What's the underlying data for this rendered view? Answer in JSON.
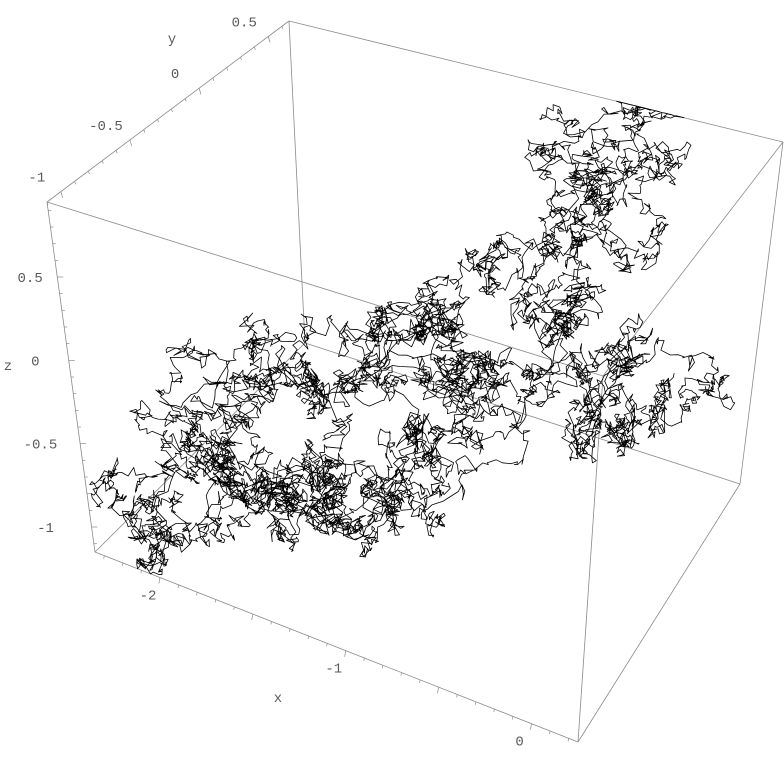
{
  "chart_data": {
    "type": "line3d",
    "title": "",
    "axes": {
      "x": {
        "label": "x",
        "range": [
          -2.35,
          0.25
        ],
        "tick_labels": [
          "-2",
          "-1",
          "0"
        ],
        "ticks": [
          -2,
          -1,
          0
        ]
      },
      "y": {
        "label": "y",
        "range": [
          -1.1,
          0.65
        ],
        "tick_labels": [
          "-1",
          "-0.5",
          "0",
          "0.5"
        ],
        "ticks": [
          -1,
          -0.5,
          0,
          0.5
        ]
      },
      "z": {
        "label": "z",
        "range": [
          -1.15,
          0.95
        ],
        "tick_labels": [
          "0.5",
          "0",
          "-0.5",
          "-1"
        ],
        "ticks": [
          0.5,
          0,
          -0.5,
          -1
        ]
      }
    },
    "box": true,
    "grid": false,
    "line_color": "#000000",
    "box_color": "#8a8a8a",
    "series": [
      {
        "description_of_path": "random walk (Brownian path), approximate waypoints in data units",
        "points": [
          [
            -2.1,
            -1.01,
            -1.07
          ],
          [
            -2.14,
            -1.01,
            -0.75
          ],
          [
            -1.93,
            -0.93,
            -0.43
          ],
          [
            -1.79,
            -0.93,
            0.11
          ],
          [
            -1.74,
            -0.84,
            -0.21
          ],
          [
            -1.5,
            -0.84,
            -0.01
          ],
          [
            -1.74,
            -0.84,
            -0.6
          ],
          [
            -1.57,
            -0.75,
            -0.8
          ],
          [
            -1.36,
            -0.75,
            -0.86
          ],
          [
            -1.34,
            -0.58,
            -0.33
          ],
          [
            -1.43,
            -0.58,
            -0.19
          ],
          [
            -1.29,
            -0.31,
            0.02
          ],
          [
            -1.07,
            -0.58,
            -0.69
          ],
          [
            -1.15,
            -0.58,
            -0.97
          ],
          [
            -0.86,
            -0.49,
            -0.37
          ],
          [
            -0.64,
            -0.4,
            0.08
          ],
          [
            -0.74,
            -0.4,
            0.16
          ],
          [
            -0.57,
            -0.31,
            -0.2
          ],
          [
            -0.99,
            -0.31,
            0.34
          ],
          [
            -0.72,
            -0.22,
            0.69
          ],
          [
            -0.53,
            -0.05,
            0.93
          ],
          [
            -0.57,
            0.47,
            0.86
          ],
          [
            -0.33,
            0.39,
            0.67
          ],
          [
            -0.58,
            0.21,
            0.4
          ],
          [
            -0.58,
            0.21,
            -0.02
          ],
          [
            -0.39,
            0.39,
            -0.28
          ],
          [
            -0.51,
            0.3,
            -0.78
          ],
          [
            -0.36,
            0.56,
            -0.89
          ],
          [
            -0.15,
            0.56,
            -0.52
          ]
        ]
      }
    ]
  }
}
